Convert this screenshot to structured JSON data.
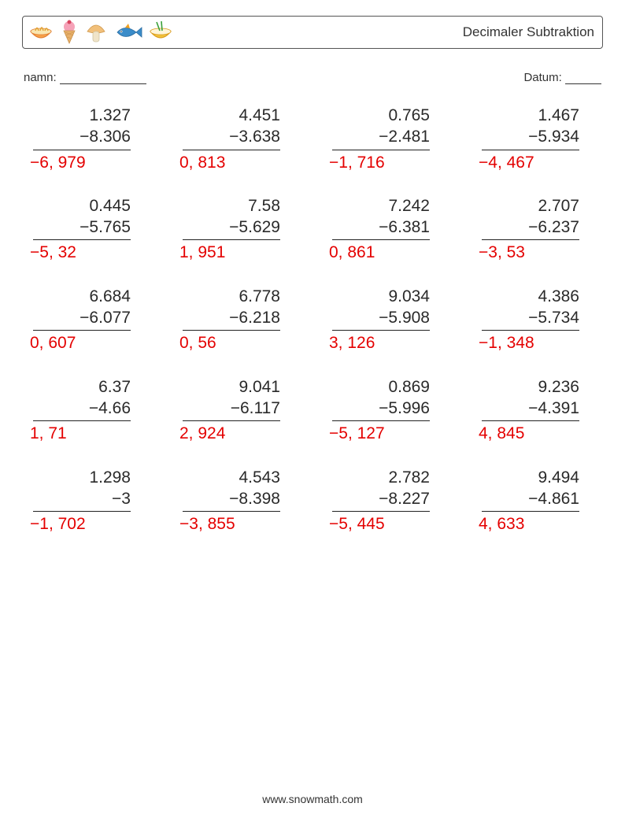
{
  "header": {
    "title": "Decimaler Subtraktion",
    "icon_colors": {
      "bowl1_fill": "#f7a24a",
      "bowl1_rim": "#e07b2e",
      "cone": "#e8b06a",
      "scoop": "#f5a2b8",
      "mushroom_cap": "#f2c07a",
      "mushroom_stem": "#f0e4c8",
      "fish_body": "#3a8cc9",
      "fish_fin": "#f0a020",
      "bowl2_fill": "#f1c23c",
      "bowl2_rim": "#d99a1a",
      "chopstick": "#3aa03a"
    }
  },
  "meta": {
    "name_label": "namn:",
    "date_label": "Datum:"
  },
  "style": {
    "answer_color": "#e40000",
    "text_color": "#2a2a2a",
    "problem_fontsize": 21,
    "columns": 4,
    "rows": 5
  },
  "problems": [
    {
      "a": "1.327",
      "b": "−8.306",
      "ans": "−6, 979"
    },
    {
      "a": "4.451",
      "b": "−3.638",
      "ans": "0, 813"
    },
    {
      "a": "0.765",
      "b": "−2.481",
      "ans": "−1, 716"
    },
    {
      "a": "1.467",
      "b": "−5.934",
      "ans": "−4, 467"
    },
    {
      "a": "0.445",
      "b": "−5.765",
      "ans": "−5, 32"
    },
    {
      "a": "7.58",
      "b": "−5.629",
      "ans": "1, 951"
    },
    {
      "a": "7.242",
      "b": "−6.381",
      "ans": "0, 861"
    },
    {
      "a": "2.707",
      "b": "−6.237",
      "ans": "−3, 53"
    },
    {
      "a": "6.684",
      "b": "−6.077",
      "ans": "0, 607"
    },
    {
      "a": "6.778",
      "b": "−6.218",
      "ans": "0, 56"
    },
    {
      "a": "9.034",
      "b": "−5.908",
      "ans": "3, 126"
    },
    {
      "a": "4.386",
      "b": "−5.734",
      "ans": "−1, 348"
    },
    {
      "a": "6.37",
      "b": "−4.66",
      "ans": "1, 71"
    },
    {
      "a": "9.041",
      "b": "−6.117",
      "ans": "2, 924"
    },
    {
      "a": "0.869",
      "b": "−5.996",
      "ans": "−5, 127"
    },
    {
      "a": "9.236",
      "b": "−4.391",
      "ans": "4, 845"
    },
    {
      "a": "1.298",
      "b": "−3",
      "ans": "−1, 702"
    },
    {
      "a": "4.543",
      "b": "−8.398",
      "ans": "−3, 855"
    },
    {
      "a": "2.782",
      "b": "−8.227",
      "ans": "−5, 445"
    },
    {
      "a": "9.494",
      "b": "−4.861",
      "ans": "4, 633"
    }
  ],
  "footer": {
    "text": "www.snowmath.com"
  }
}
